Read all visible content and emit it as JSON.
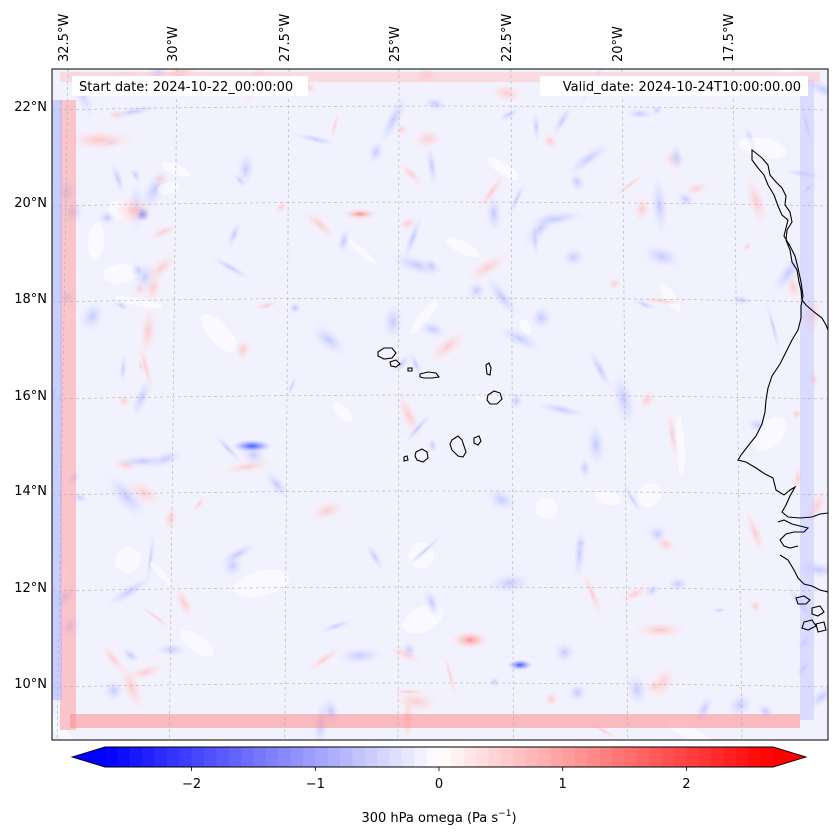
{
  "map": {
    "start_label": "Start date: 2024-10-22_00:00:00",
    "valid_label": "Valid_date: 2024-10-24T10:00:00.00",
    "lon_ticks": [
      "32.5°W",
      "30°W",
      "27.5°W",
      "25°W",
      "22.5°W",
      "20°W",
      "17.5°W"
    ],
    "lat_ticks": [
      "22°N",
      "20°N",
      "18°N",
      "16°N",
      "14°N",
      "12°N",
      "10°N"
    ],
    "field": "300 hPa omega",
    "colormap": "bwr",
    "colors": {
      "negative": "#0000ff",
      "positive": "#ff0000",
      "neutral": "#ffffff",
      "coastline": "#000000",
      "gridline": "#b0b0b0"
    },
    "features": [
      "Cabo Verde islands",
      "West African coastline",
      "omega field contours"
    ]
  },
  "colorbar": {
    "label_prefix": "300 hPa omega (Pa s",
    "label_exp": "−1",
    "label_suffix": ")",
    "min": -2.7,
    "max": 2.7,
    "ticks": [
      {
        "value": -2,
        "label": "−2"
      },
      {
        "value": -1,
        "label": "−1"
      },
      {
        "value": 0,
        "label": "0"
      },
      {
        "value": 1,
        "label": "1"
      },
      {
        "value": 2,
        "label": "2"
      }
    ],
    "extend": "both"
  }
}
